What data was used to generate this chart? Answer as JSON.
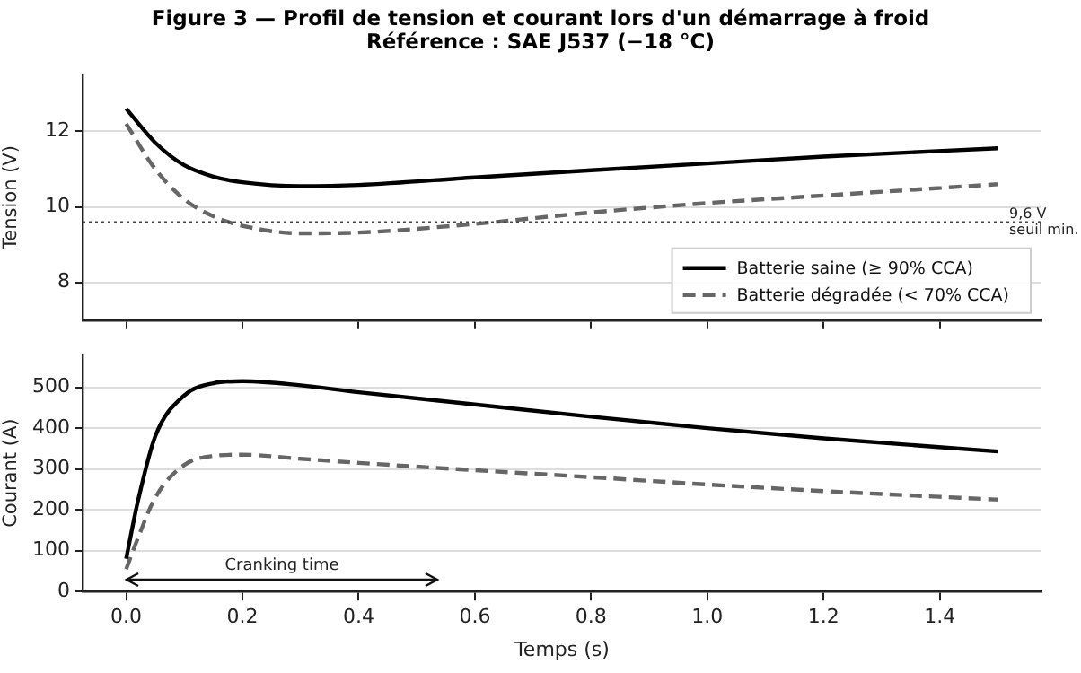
{
  "chart_data": [
    {
      "type": "line",
      "title": "Figure 3 — Profil de tension et courant lors d'un démarrage à froid",
      "subtitle": "Référence : SAE J537 (−18 °C)",
      "ylabel": "Tension (V)",
      "xlim": [
        -0.075,
        1.575
      ],
      "xticks": [
        {
          "value": 0,
          "label": null
        },
        {
          "value": 0.2,
          "label": null
        },
        {
          "value": 0.4,
          "label": null
        },
        {
          "value": 0.6,
          "label": null
        },
        {
          "value": 0.8,
          "label": null
        },
        {
          "value": 1,
          "label": null
        },
        {
          "value": 1.2,
          "label": null
        },
        {
          "value": 1.4,
          "label": null
        }
      ],
      "ylim": [
        7,
        13.5
      ],
      "yticks": [
        8,
        10,
        12
      ],
      "tick_labels": "y",
      "grid": "y",
      "legend": "bottom right",
      "x": [
        0,
        0.05,
        0.1,
        0.15,
        0.2,
        0.3,
        0.4,
        0.6,
        0.8,
        1,
        1.2,
        1.5
      ],
      "ref_lines": [
        {
          "axis": "y",
          "value": 9.6,
          "label": "9,6 V\nseuil min.",
          "color": "#444444",
          "line_style": "dotted"
        }
      ],
      "series": [
        {
          "name": "Batterie saine (≥ 90% CCA)",
          "color": "#000000",
          "line_style": "solid",
          "values": [
            12.6,
            11.7,
            11.1,
            10.8,
            10.65,
            10.55,
            10.58,
            10.78,
            10.97,
            11.15,
            11.33,
            11.55
          ]
        },
        {
          "name": "Batterie dégradée (< 70% CCA)",
          "color": "#666666",
          "line_style": "dashed",
          "values": [
            12.2,
            11,
            10.2,
            9.75,
            9.5,
            9.3,
            9.32,
            9.55,
            9.85,
            10.1,
            10.3,
            10.6
          ]
        }
      ]
    },
    {
      "type": "line",
      "xlabel": "Temps (s)",
      "ylabel": "Courant (A)",
      "xlim": [
        -0.075,
        1.575
      ],
      "xticks": [
        {
          "value": 0,
          "label": "0.0"
        },
        {
          "value": 0.2,
          "label": "0.2"
        },
        {
          "value": 0.4,
          "label": "0.4"
        },
        {
          "value": 0.6,
          "label": "0.6"
        },
        {
          "value": 0.8,
          "label": "0.8"
        },
        {
          "value": 1,
          "label": "1.0"
        },
        {
          "value": 1.2,
          "label": "1.2"
        },
        {
          "value": 1.4,
          "label": "1.4"
        }
      ],
      "ylim": [
        0,
        580
      ],
      "yticks": [
        0,
        100,
        200,
        300,
        400,
        500
      ],
      "grid": "y",
      "x": [
        0,
        0.02,
        0.05,
        0.1,
        0.15,
        0.2,
        0.3,
        0.4,
        0.6,
        0.8,
        1,
        1.2,
        1.5
      ],
      "annotations": [
        "Cranking time"
      ],
      "series": [
        {
          "color": "#000000",
          "line_style": "solid",
          "values": [
            80,
            220,
            380,
            480,
            510,
            515,
            505,
            488,
            458,
            428,
            400,
            375,
            343
          ]
        },
        {
          "color": "#666666",
          "line_style": "dashed",
          "values": [
            55,
            130,
            230,
            310,
            332,
            335,
            325,
            315,
            297,
            280,
            262,
            246,
            225
          ]
        }
      ]
    }
  ]
}
